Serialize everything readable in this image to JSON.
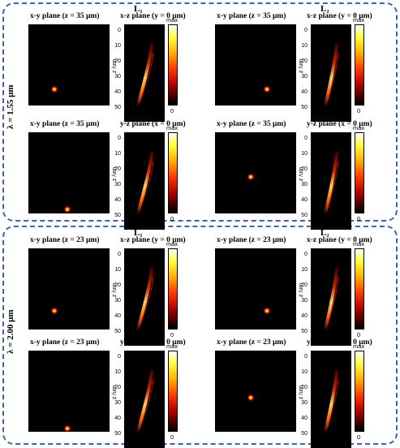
{
  "sections": [
    {
      "wavelength": "λ = 1.55 μm",
      "panels": [
        {
          "label": "L₁",
          "xy_title": "x-y plane (z = 35 μm)",
          "side_title": "x-z plane (y = 0 μm)"
        },
        {
          "label": "L₂",
          "xy_title": "x-y plane (z = 35 μm)",
          "side_title": "x-z plane (y = 0 μm)"
        },
        {
          "label": "L₃",
          "xy_title": "x-y plane (z = 35 μm)",
          "side_title": "y-z plane (x = 0 μm)"
        },
        {
          "label": "L₄",
          "xy_title": "x-y plane (z = 35 μm)",
          "side_title": "y-z plane (x = 0 μm)"
        }
      ]
    },
    {
      "wavelength": "λ = 2.00 μm",
      "panels": [
        {
          "label": "L₁",
          "xy_title": "x-y plane (z = 23 μm)",
          "side_title": "x-z plane (y = 0 μm)"
        },
        {
          "label": "L₂",
          "xy_title": "x-y plane (z = 23 μm)",
          "side_title": "x-z plane (y = 0 μm)"
        },
        {
          "label": "L₃",
          "xy_title": "x-y plane (z = 23 μm)",
          "side_title": "y-z plane (x = 0 μm)"
        },
        {
          "label": "L₄",
          "xy_title": "x-y plane (z = 23 μm)",
          "side_title": "y-z plane (x = 0 μm)"
        }
      ]
    }
  ],
  "axis": {
    "zlabel": "z /um",
    "ticks": [
      "0",
      "10",
      "20",
      "30",
      "40",
      "50"
    ]
  },
  "colorbar": {
    "max": "max",
    "min": "0"
  },
  "colors": {
    "frame": "#3d63a8",
    "background": "#000000",
    "colormap": "hot"
  }
}
